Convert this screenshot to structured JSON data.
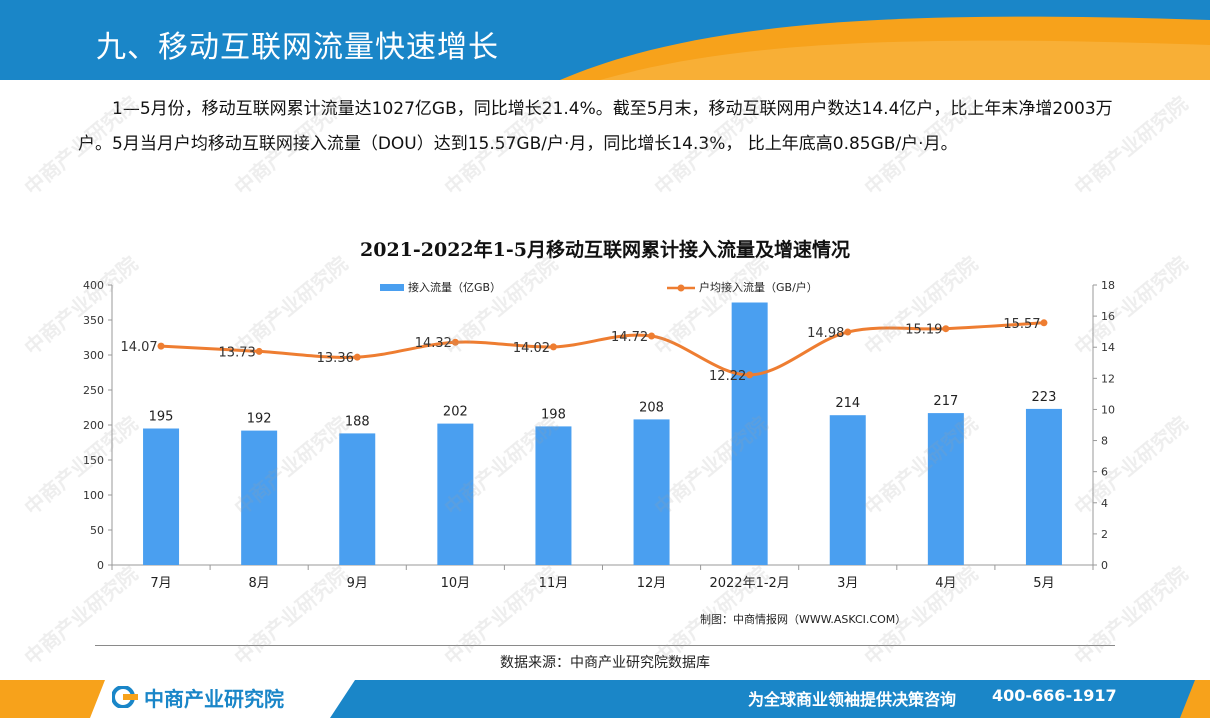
{
  "header": {
    "title": "九、移动互联网流量快速增长"
  },
  "intro": {
    "paragraph": "1—5月份，移动互联网累计流量达1027亿GB，同比增长21.4%。截至5月末，移动互联网用户数达14.4亿户，比上年末净增2003万户。5月当月户均移动互联网接入流量（DOU）达到15.57GB/户·月，同比增长14.3%， 比上年底高0.85GB/户·月。"
  },
  "chart_data": {
    "type": "bar",
    "title": "2021-2022年1-5月移动互联网累计接入流量及增速情况",
    "categories": [
      "7月",
      "8月",
      "9月",
      "10月",
      "11月",
      "12月",
      "2022年1-2月",
      "3月",
      "4月",
      "5月"
    ],
    "series": [
      {
        "name": "接入流量（亿GB）",
        "type": "bar",
        "axis": "left",
        "values": [
          195,
          192,
          188,
          202,
          198,
          208,
          375,
          214,
          217,
          223
        ],
        "labels": [
          "195",
          "192",
          "188",
          "202",
          "198",
          "208",
          "",
          "214",
          "217",
          "223"
        ],
        "color": "#4a9ff0"
      },
      {
        "name": "户均接入流量（GB/户）",
        "type": "line",
        "axis": "right",
        "values": [
          14.07,
          13.73,
          13.36,
          14.32,
          14.02,
          14.72,
          12.22,
          14.98,
          15.19,
          15.57
        ],
        "labels": [
          "14.07",
          "13.73",
          "13.36",
          "14.32",
          "14.02",
          "14.72",
          "12.22",
          "14.98",
          "15.19",
          "15.57"
        ],
        "color": "#ee7d31"
      }
    ],
    "ylim_left": [
      0,
      400
    ],
    "yticks_left": [
      "0",
      "50",
      "100",
      "150",
      "200",
      "250",
      "300",
      "350",
      "400"
    ],
    "ylim_right": [
      0,
      18
    ],
    "yticks_right": [
      "0",
      "2",
      "4",
      "6",
      "8",
      "10",
      "12",
      "14",
      "16",
      "18"
    ],
    "grid": false,
    "legend_position": "top"
  },
  "credit": "制图：中商情报网（WWW.ASKCI.COM）",
  "source": "数据来源：中商产业研究院数据库",
  "footer": {
    "brand": "中商产业研究院",
    "slogan": "为全球商业领袖提供决策咨询",
    "phone": "400-666-1917"
  },
  "watermark": "中商产业研究院",
  "colors": {
    "header_blue": "#1a86c8",
    "accent_orange": "#f7a21b",
    "bar_blue": "#4a9ff0",
    "line_orange": "#ee7d31"
  }
}
